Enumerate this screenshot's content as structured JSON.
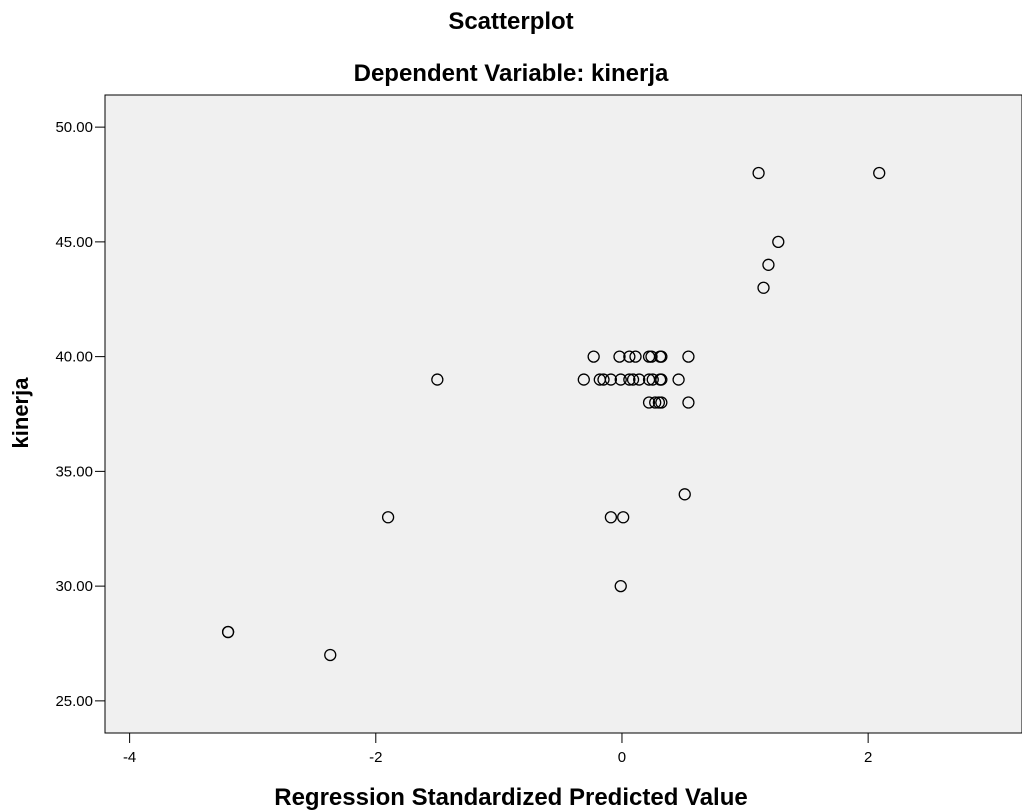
{
  "chart_data": {
    "type": "scatter",
    "title": "Scatterplot",
    "subtitle": "Dependent Variable: kinerja",
    "xlabel": "Regression Standardized Predicted Value",
    "ylabel": "kinerja",
    "xlim": [
      -4.2,
      3.25
    ],
    "ylim": [
      23.6,
      51.4
    ],
    "x_ticks": [
      -4,
      -2,
      0,
      2
    ],
    "x_tick_labels": [
      "-4",
      "-2",
      "0",
      "2"
    ],
    "y_ticks": [
      25,
      30,
      35,
      40,
      45,
      50
    ],
    "y_tick_labels": [
      "25.00",
      "30.00",
      "35.00",
      "40.00",
      "45.00",
      "50.00"
    ],
    "grid": false,
    "plot_background": "#f0f0f0",
    "marker": "hollow-circle",
    "series": [
      {
        "points": [
          {
            "x": 1.11,
            "y": 48
          },
          {
            "x": 2.09,
            "y": 48
          },
          {
            "x": 1.27,
            "y": 45
          },
          {
            "x": 1.19,
            "y": 44
          },
          {
            "x": 1.15,
            "y": 43
          },
          {
            "x": -0.23,
            "y": 40
          },
          {
            "x": -0.02,
            "y": 40
          },
          {
            "x": 0.06,
            "y": 40
          },
          {
            "x": 0.11,
            "y": 40
          },
          {
            "x": 0.22,
            "y": 40
          },
          {
            "x": 0.24,
            "y": 40
          },
          {
            "x": 0.31,
            "y": 40
          },
          {
            "x": 0.32,
            "y": 40
          },
          {
            "x": 0.54,
            "y": 40
          },
          {
            "x": -1.5,
            "y": 39
          },
          {
            "x": -0.31,
            "y": 39
          },
          {
            "x": -0.18,
            "y": 39
          },
          {
            "x": -0.15,
            "y": 39
          },
          {
            "x": -0.09,
            "y": 39
          },
          {
            "x": -0.01,
            "y": 39
          },
          {
            "x": 0.06,
            "y": 39
          },
          {
            "x": 0.09,
            "y": 39
          },
          {
            "x": 0.14,
            "y": 39
          },
          {
            "x": 0.22,
            "y": 39
          },
          {
            "x": 0.25,
            "y": 39
          },
          {
            "x": 0.31,
            "y": 39
          },
          {
            "x": 0.32,
            "y": 39
          },
          {
            "x": 0.46,
            "y": 39
          },
          {
            "x": 0.22,
            "y": 38
          },
          {
            "x": 0.27,
            "y": 38
          },
          {
            "x": 0.3,
            "y": 38
          },
          {
            "x": 0.32,
            "y": 38
          },
          {
            "x": 0.54,
            "y": 38
          },
          {
            "x": 0.51,
            "y": 34
          },
          {
            "x": -1.9,
            "y": 33
          },
          {
            "x": -0.09,
            "y": 33
          },
          {
            "x": 0.01,
            "y": 33
          },
          {
            "x": -0.01,
            "y": 30
          },
          {
            "x": -3.2,
            "y": 28
          },
          {
            "x": -3.2,
            "y": 28
          },
          {
            "x": -2.37,
            "y": 27
          }
        ]
      }
    ]
  }
}
